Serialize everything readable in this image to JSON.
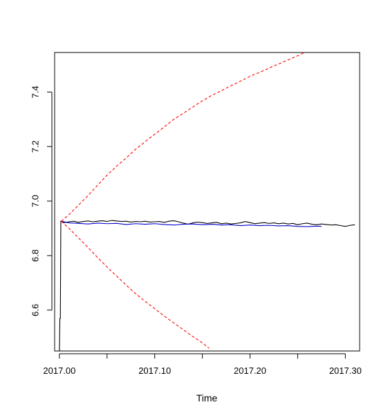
{
  "chart_data": {
    "type": "line",
    "title": "",
    "xlabel": "Time",
    "ylabel": "",
    "xlim": [
      2016.995,
      2017.315
    ],
    "ylim": [
      6.45,
      7.545
    ],
    "grid": false,
    "x_ticks": [
      2017.0,
      2017.05,
      2017.1,
      2017.15,
      2017.2,
      2017.25,
      2017.3
    ],
    "x_tick_labels": [
      "2017.00",
      "",
      "2017.10",
      "",
      "2017.20",
      "",
      "2017.30"
    ],
    "y_ticks": [
      6.6,
      6.8,
      7.0,
      7.2,
      7.4
    ],
    "y_tick_labels": [
      "6.6",
      "6.8",
      "7.0",
      "7.2",
      "7.4"
    ],
    "series": [
      {
        "color": "#000000",
        "style": "solid",
        "x": [
          2017.0,
          2017.0005,
          2017.001,
          2017.0015,
          2017.002,
          2017.005,
          2017.01,
          2017.015,
          2017.02,
          2017.025,
          2017.03,
          2017.035,
          2017.04,
          2017.045,
          2017.05,
          2017.055,
          2017.06,
          2017.065,
          2017.07,
          2017.075,
          2017.08,
          2017.085,
          2017.09,
          2017.095,
          2017.1,
          2017.105,
          2017.11,
          2017.115,
          2017.12,
          2017.125,
          2017.13,
          2017.135,
          2017.14,
          2017.145,
          2017.15,
          2017.155,
          2017.16,
          2017.165,
          2017.17,
          2017.175,
          2017.18,
          2017.185,
          2017.19,
          2017.195,
          2017.2,
          2017.205,
          2017.21,
          2017.215,
          2017.22,
          2017.225,
          2017.23,
          2017.235,
          2017.24,
          2017.245,
          2017.25,
          2017.255,
          2017.26,
          2017.265,
          2017.27,
          2017.275,
          2017.28,
          2017.285,
          2017.29,
          2017.295,
          2017.3,
          2017.305,
          2017.31
        ],
        "y": [
          6.44,
          6.57,
          6.57,
          6.926,
          6.926,
          6.921,
          6.924,
          6.926,
          6.922,
          6.925,
          6.927,
          6.924,
          6.926,
          6.928,
          6.925,
          6.929,
          6.927,
          6.925,
          6.926,
          6.923,
          6.925,
          6.924,
          6.926,
          6.923,
          6.924,
          6.925,
          6.922,
          6.926,
          6.928,
          6.924,
          6.919,
          6.915,
          6.92,
          6.923,
          6.921,
          6.918,
          6.92,
          6.922,
          6.917,
          6.919,
          6.916,
          6.918,
          6.92,
          6.925,
          6.921,
          6.917,
          6.919,
          6.921,
          6.918,
          6.92,
          6.917,
          6.919,
          6.916,
          6.918,
          6.913,
          6.917,
          6.919,
          6.915,
          6.913,
          6.916,
          6.914,
          6.912,
          6.913,
          6.91,
          6.907,
          6.911,
          6.913
        ]
      },
      {
        "color": "#0000cc",
        "style": "solid",
        "x": [
          2017.002,
          2017.01,
          2017.02,
          2017.03,
          2017.04,
          2017.05,
          2017.06,
          2017.07,
          2017.08,
          2017.09,
          2017.1,
          2017.11,
          2017.12,
          2017.13,
          2017.14,
          2017.15,
          2017.16,
          2017.17,
          2017.18,
          2017.19,
          2017.2,
          2017.21,
          2017.22,
          2017.23,
          2017.24,
          2017.25,
          2017.26,
          2017.27,
          2017.275
        ],
        "y": [
          6.926,
          6.92,
          6.918,
          6.916,
          6.919,
          6.917,
          6.918,
          6.914,
          6.917,
          6.915,
          6.917,
          6.914,
          6.912,
          6.915,
          6.916,
          6.913,
          6.915,
          6.912,
          6.913,
          6.91,
          6.912,
          6.91,
          6.911,
          6.909,
          6.91,
          6.907,
          6.906,
          6.908,
          6.907
        ]
      },
      {
        "color": "#ff0000",
        "style": "dashed",
        "x": [
          2017.002,
          2017.01,
          2017.02,
          2017.03,
          2017.04,
          2017.05,
          2017.06,
          2017.07,
          2017.08,
          2017.09,
          2017.1,
          2017.11,
          2017.12,
          2017.13,
          2017.14,
          2017.15,
          2017.16,
          2017.17,
          2017.18,
          2017.19,
          2017.2,
          2017.21,
          2017.22,
          2017.23,
          2017.24,
          2017.25,
          2017.257
        ],
        "y": [
          6.926,
          6.95,
          6.985,
          7.02,
          7.058,
          7.095,
          7.128,
          7.158,
          7.19,
          7.218,
          7.245,
          7.272,
          7.3,
          7.322,
          7.345,
          7.368,
          7.388,
          7.405,
          7.423,
          7.44,
          7.458,
          7.472,
          7.488,
          7.503,
          7.518,
          7.533,
          7.545
        ]
      },
      {
        "color": "#ff0000",
        "style": "dashed",
        "x": [
          2017.002,
          2017.01,
          2017.02,
          2017.03,
          2017.04,
          2017.05,
          2017.06,
          2017.07,
          2017.08,
          2017.09,
          2017.1,
          2017.11,
          2017.12,
          2017.13,
          2017.14,
          2017.15,
          2017.157
        ],
        "y": [
          6.926,
          6.9,
          6.865,
          6.83,
          6.793,
          6.758,
          6.725,
          6.692,
          6.66,
          6.632,
          6.605,
          6.578,
          6.553,
          6.528,
          6.503,
          6.48,
          6.46
        ]
      }
    ]
  }
}
